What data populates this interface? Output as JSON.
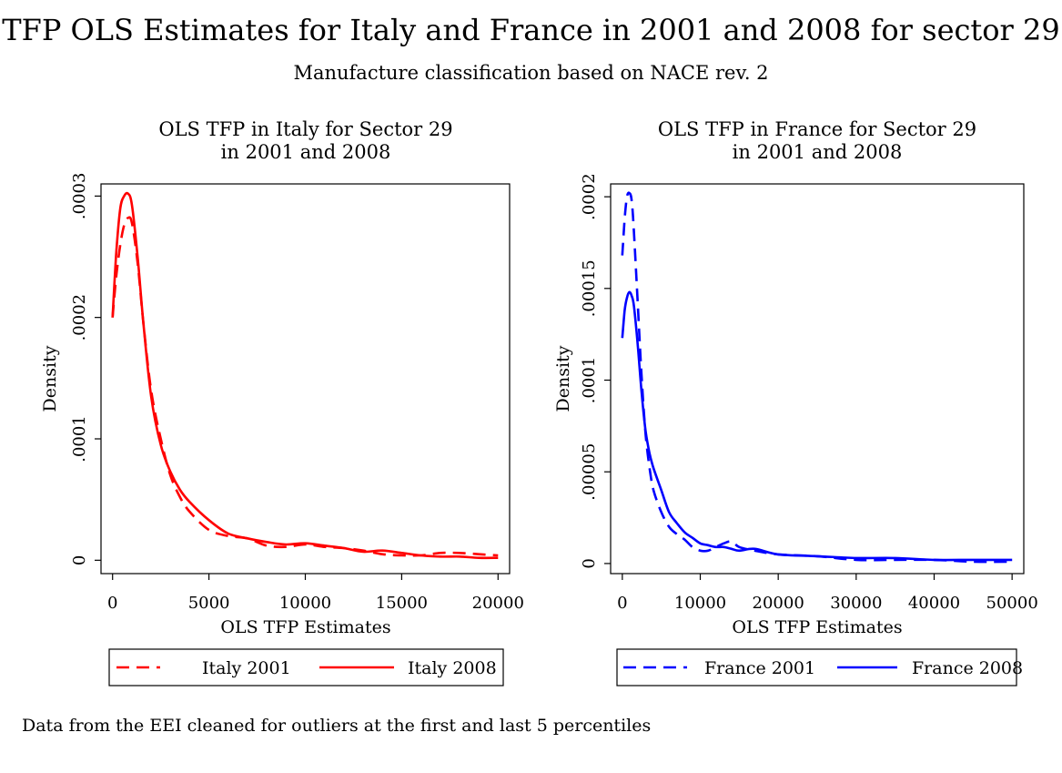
{
  "title": "TFP OLS Estimates for Italy and France in 2001 and 2008 for sector 29",
  "subtitle": "Manufacture classification based on NACE rev. 2",
  "note": "Data from the EEI cleaned for outliers at the first and last 5 percentiles",
  "chart_data": [
    {
      "type": "line",
      "title_lines": [
        "OLS TFP in Italy for Sector 29",
        "in 2001 and 2008"
      ],
      "xlabel": "OLS TFP Estimates",
      "ylabel": "Density",
      "xlim": [
        -600,
        20600
      ],
      "ylim": [
        -1.1e-05,
        0.00031
      ],
      "xticks": [
        0,
        5000,
        10000,
        15000,
        20000
      ],
      "xtick_labels": [
        "0",
        "5000",
        "10000",
        "15000",
        "20000"
      ],
      "yticks": [
        0,
        0.0001,
        0.0002,
        0.0003
      ],
      "ytick_labels": [
        "0",
        ".0001",
        ".0002",
        ".0003"
      ],
      "grid": false,
      "legend_position": "bottom",
      "series": [
        {
          "name": "Italy 2001",
          "color": "#ff0000",
          "dash": "dashed",
          "x": [
            0,
            200,
            400,
            600,
            800,
            1000,
            1300,
            1600,
            2000,
            2500,
            3000,
            3500,
            4000,
            5000,
            6000,
            7000,
            8000,
            9000,
            10000,
            11000,
            12000,
            13000,
            14000,
            15000,
            16000,
            17000,
            18000,
            19000,
            20000
          ],
          "y": [
            0.0002,
            0.000235,
            0.00026,
            0.000276,
            0.000282,
            0.000278,
            0.000245,
            0.000195,
            0.00014,
            0.0001,
            7e-05,
            5.2e-05,
            4e-05,
            2.5e-05,
            2e-05,
            1.8e-05,
            1.2e-05,
            1.1e-05,
            1.3e-05,
            1.1e-05,
            1e-05,
            8e-06,
            5e-06,
            4e-06,
            4e-06,
            6e-06,
            6e-06,
            5e-06,
            4e-06
          ]
        },
        {
          "name": "Italy 2008",
          "color": "#ff0000",
          "dash": "solid",
          "x": [
            0,
            200,
            400,
            600,
            800,
            1000,
            1300,
            1600,
            2000,
            2500,
            3000,
            3500,
            4000,
            5000,
            6000,
            7000,
            8000,
            9000,
            10000,
            11000,
            12000,
            13000,
            14000,
            15000,
            16000,
            17000,
            18000,
            19000,
            20000
          ],
          "y": [
            0.0002,
            0.000255,
            0.00029,
            0.0003,
            0.000302,
            0.000293,
            0.00025,
            0.000195,
            0.000135,
            9.5e-05,
            7.3e-05,
            5.8e-05,
            4.8e-05,
            3.3e-05,
            2.2e-05,
            1.8e-05,
            1.5e-05,
            1.3e-05,
            1.4e-05,
            1.2e-05,
            1e-05,
            7e-06,
            8e-06,
            6e-06,
            4e-06,
            3e-06,
            3e-06,
            2e-06,
            2e-06
          ]
        }
      ]
    },
    {
      "type": "line",
      "title_lines": [
        "OLS TFP in France for Sector 29",
        "in 2001 and 2008"
      ],
      "xlabel": "OLS TFP Estimates",
      "ylabel": "Density",
      "xlim": [
        -1500,
        51500
      ],
      "ylim": [
        -5.5e-06,
        0.000207
      ],
      "xticks": [
        0,
        10000,
        20000,
        30000,
        40000,
        50000
      ],
      "xtick_labels": [
        "0",
        "10000",
        "20000",
        "30000",
        "40000",
        "50000"
      ],
      "yticks": [
        0,
        5e-05,
        0.0001,
        0.00015,
        0.0002
      ],
      "ytick_labels": [
        "0",
        ".00005",
        ".0001",
        ".00015",
        ".0002"
      ],
      "grid": false,
      "legend_position": "bottom",
      "series": [
        {
          "name": "France 2001",
          "color": "#0000ff",
          "dash": "dashed",
          "x": [
            0,
            300,
            600,
            900,
            1200,
            1500,
            2000,
            2500,
            3000,
            3500,
            4000,
            5000,
            6000,
            7000,
            8000,
            9000,
            10000,
            11000,
            12000,
            13000,
            14000,
            15000,
            17000,
            20000,
            25000,
            30000,
            35000,
            40000,
            45000,
            50000
          ],
          "y": [
            0.000168,
            0.000188,
            0.0002,
            0.000202,
            0.000198,
            0.00018,
            0.00014,
            0.0001,
            7e-05,
            5.2e-05,
            4e-05,
            2.8e-05,
            2e-05,
            1.6e-05,
            1.3e-05,
            9e-06,
            7e-06,
            7e-06,
            9e-06,
            1.1e-05,
            1.2e-05,
            9e-06,
            7e-06,
            5e-06,
            4e-06,
            2e-06,
            2e-06,
            2e-06,
            1e-06,
            1e-06
          ]
        },
        {
          "name": "France 2008",
          "color": "#0000ff",
          "dash": "solid",
          "x": [
            0,
            300,
            600,
            900,
            1200,
            1500,
            2000,
            2500,
            3000,
            3500,
            4000,
            5000,
            6000,
            7000,
            8000,
            9000,
            10000,
            11000,
            12000,
            13000,
            14000,
            15000,
            17000,
            20000,
            25000,
            30000,
            35000,
            40000,
            45000,
            50000
          ],
          "y": [
            0.000123,
            0.000138,
            0.000145,
            0.000148,
            0.000146,
            0.00014,
            0.000118,
            9.2e-05,
            7.2e-05,
            6e-05,
            5.2e-05,
            4e-05,
            2.8e-05,
            2.2e-05,
            1.7e-05,
            1.4e-05,
            1.1e-05,
            1e-05,
            9e-06,
            9e-06,
            8e-06,
            7e-06,
            8e-06,
            5e-06,
            4e-06,
            3e-06,
            3e-06,
            2e-06,
            2e-06,
            2e-06
          ]
        }
      ]
    }
  ]
}
